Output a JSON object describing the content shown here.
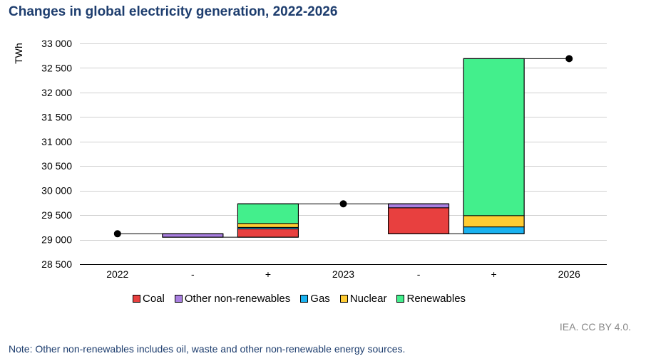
{
  "title": "Changes in global electricity generation, 2022-2026",
  "colors": {
    "Coal": "#e8403f",
    "Other non-renewables": "#a97fe0",
    "Gas": "#1ab2f0",
    "Nuclear": "#ffcc33",
    "Renewables": "#43ef8c"
  },
  "chart_data": {
    "type": "bar",
    "subtype": "waterfall",
    "title": "Changes in global electricity generation, 2022-2026",
    "ylabel": "TWh",
    "xlabel": "",
    "ylim": [
      28500,
      33000
    ],
    "yticks": [
      28500,
      29000,
      29500,
      30000,
      30500,
      31000,
      31500,
      32000,
      32500,
      33000
    ],
    "ytick_labels": [
      "28 500",
      "29 000",
      "29 500",
      "30 000",
      "30 500",
      "31 000",
      "31 500",
      "32 000",
      "32 500",
      "33 000"
    ],
    "categories": [
      "2022",
      "-",
      "+",
      "2023",
      "-",
      "+",
      "2026"
    ],
    "grid": true,
    "legend_position": "bottom",
    "legend": [
      "Coal",
      "Other non-renewables",
      "Gas",
      "Nuclear",
      "Renewables"
    ],
    "totals": [
      {
        "category_index": 0,
        "value": 29120
      },
      {
        "category_index": 3,
        "value": 29730
      },
      {
        "category_index": 6,
        "value": 32690
      }
    ],
    "changes": [
      {
        "category_index": 1,
        "direction": "decrease",
        "segments": [
          {
            "source": "Other non-renewables",
            "from": 29120,
            "to": 29050
          }
        ]
      },
      {
        "category_index": 2,
        "direction": "increase",
        "segments": [
          {
            "source": "Coal",
            "from": 29050,
            "to": 29220
          },
          {
            "source": "Gas",
            "from": 29220,
            "to": 29250
          },
          {
            "source": "Nuclear",
            "from": 29250,
            "to": 29330
          },
          {
            "source": "Renewables",
            "from": 29330,
            "to": 29730
          }
        ]
      },
      {
        "category_index": 4,
        "direction": "decrease",
        "segments": [
          {
            "source": "Coal",
            "from": 29120,
            "to": 29650
          },
          {
            "source": "Other non-renewables",
            "from": 29650,
            "to": 29730
          }
        ]
      },
      {
        "category_index": 5,
        "direction": "increase",
        "segments": [
          {
            "source": "Gas",
            "from": 29120,
            "to": 29260
          },
          {
            "source": "Nuclear",
            "from": 29260,
            "to": 29490
          },
          {
            "source": "Renewables",
            "from": 29490,
            "to": 32690
          }
        ]
      }
    ]
  },
  "credit": "IEA. CC BY 4.0.",
  "note": "Note: Other non-renewables includes oil, waste and other non-renewable energy sources."
}
